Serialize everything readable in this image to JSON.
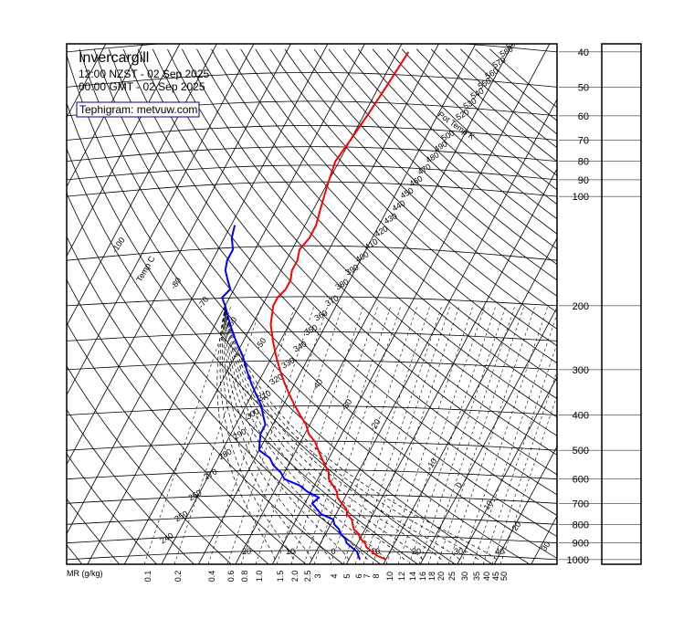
{
  "chart_data": {
    "type": "line",
    "chart_kind": "tephigram",
    "title": "Invercargill",
    "subtitle_local": "12:00 NZST - 02 Sep 2025",
    "subtitle_gmt": "00:00 GMT - 02 Sep 2025",
    "source_label": "Tephigram: metvuw.com",
    "mr_axis_label": "MR (g/kg)",
    "mr_ticks": [
      "0.1",
      "0.2",
      "0.4",
      "0.6",
      "0.8",
      "1.0",
      "1.5",
      "2.0",
      "2.5",
      "3",
      "4",
      "5",
      "6",
      "7",
      "8",
      "10",
      "12",
      "14",
      "16",
      "18",
      "20",
      "25",
      "30",
      "35",
      "40",
      "45",
      "50"
    ],
    "pressure_ticks": [
      40,
      50,
      60,
      70,
      80,
      90,
      100,
      200,
      300,
      400,
      500,
      600,
      700,
      800,
      900,
      1000
    ],
    "pressure_range_hpa": [
      38,
      1030
    ],
    "temp_label": "Temp C",
    "theta_label": "Pot Temp K",
    "theta_labels": [
      240,
      250,
      260,
      270,
      280,
      290,
      300,
      310,
      320,
      330,
      340,
      350,
      360,
      370,
      380,
      390,
      400,
      410,
      420,
      430,
      440,
      450,
      460,
      470,
      480,
      490,
      500,
      520,
      530,
      540,
      550,
      560,
      570,
      580,
      590
    ],
    "temp_iso_labels": [
      "-100",
      "-80",
      "-70",
      "-60",
      "-50",
      "-40",
      "-30",
      "-20",
      "-10",
      "0",
      "10",
      "20",
      "30",
      "40",
      "50"
    ],
    "isotherm_values": [
      -100,
      -80,
      -70,
      -60,
      -50,
      -40,
      -30,
      -20,
      -10,
      0,
      10,
      20,
      30,
      40,
      50
    ],
    "series": [
      {
        "color": "#ff0000",
        "pressure": [
          1000,
          975,
          950,
          925,
          900,
          875,
          850,
          825,
          800,
          775,
          750,
          725,
          700,
          675,
          650,
          625,
          600,
          575,
          550,
          525,
          500,
          475,
          450,
          425,
          400,
          375,
          350,
          325,
          300,
          275,
          250,
          225,
          200,
          190,
          180,
          170,
          160,
          150,
          140,
          130,
          120,
          110,
          100,
          90,
          80,
          70,
          60,
          50,
          40
        ],
        "values": [
          10,
          7,
          5,
          3,
          2,
          0,
          -1,
          -3,
          -4,
          -5,
          -7,
          -8,
          -10,
          -12,
          -13,
          -15,
          -17,
          -18,
          -20,
          -22,
          -24,
          -26,
          -29,
          -31,
          -34,
          -37,
          -40,
          -43,
          -46,
          -49,
          -52,
          -55,
          -57,
          -57,
          -56,
          -56,
          -57,
          -57,
          -58,
          -57,
          -57,
          -58,
          -59,
          -60,
          -61,
          -60,
          -59,
          -58,
          -57
        ]
      },
      {
        "color": "#0000ff",
        "pressure": [
          1000,
          975,
          950,
          925,
          900,
          875,
          850,
          825,
          800,
          775,
          750,
          725,
          700,
          675,
          650,
          625,
          600,
          575,
          550,
          525,
          500,
          475,
          450,
          425,
          400,
          375,
          350,
          325,
          300,
          275,
          250,
          225,
          200,
          190,
          180,
          170,
          160,
          150,
          140,
          130,
          120
        ],
        "values": [
          3,
          2,
          1,
          -1,
          -3,
          -4,
          -6,
          -7,
          -9,
          -10,
          -14,
          -16,
          -18,
          -17,
          -21,
          -24,
          -29,
          -31,
          -34,
          -36,
          -40,
          -41,
          -42,
          -42,
          -44,
          -46,
          -49,
          -52,
          -55,
          -58,
          -62,
          -66,
          -70,
          -72,
          -71,
          -73,
          -75,
          -76,
          -76,
          -78,
          -79
        ]
      }
    ]
  }
}
